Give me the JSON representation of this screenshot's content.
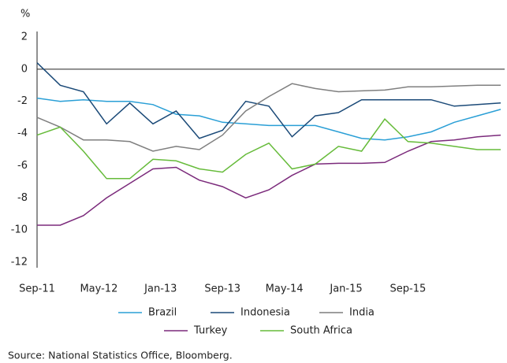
{
  "chart_data": {
    "type": "line",
    "y_unit": "%",
    "x": [
      "2011-09",
      "2011-12",
      "2012-03",
      "2012-06",
      "2012-09",
      "2012-12",
      "2013-03",
      "2013-06",
      "2013-09",
      "2013-12",
      "2014-03",
      "2014-06",
      "2014-09",
      "2014-12",
      "2015-03",
      "2015-06",
      "2015-09",
      "2015-12",
      "2016-03",
      "2016-06",
      "2016-09"
    ],
    "xticks": [
      {
        "value": "2011-09",
        "label": "Sep-11"
      },
      {
        "value": "2012-05",
        "label": "May-12"
      },
      {
        "value": "2013-01",
        "label": "Jan-13"
      },
      {
        "value": "2013-09",
        "label": "Sep-13"
      },
      {
        "value": "2014-05",
        "label": "May-14"
      },
      {
        "value": "2015-01",
        "label": "Jan-15"
      },
      {
        "value": "2015-09",
        "label": "Sep-15"
      }
    ],
    "ylim": [
      -12,
      2
    ],
    "yticks": [
      2,
      0,
      -2,
      -4,
      -6,
      -8,
      -10,
      -12
    ],
    "series": [
      {
        "name": "Brazil",
        "color": "#2a9fd6",
        "values": [
          -1.8,
          -2.0,
          -1.9,
          -2.0,
          -2.0,
          -2.2,
          -2.8,
          -2.9,
          -3.3,
          -3.4,
          -3.5,
          -3.5,
          -3.5,
          -3.9,
          -4.3,
          -4.4,
          -4.2,
          -3.9,
          -3.3,
          -2.9,
          -2.5
        ]
      },
      {
        "name": "Indonesia",
        "color": "#1b4a78",
        "values": [
          0.4,
          -1.0,
          -1.4,
          -3.4,
          -2.1,
          -3.4,
          -2.6,
          -4.3,
          -3.8,
          -2.0,
          -2.3,
          -4.2,
          -2.9,
          -2.7,
          -1.9,
          -1.9,
          -1.9,
          -1.9,
          -2.3,
          -2.2,
          -2.1
        ]
      },
      {
        "name": "India",
        "color": "#7f7f7f",
        "values": [
          -3.0,
          -3.6,
          -4.4,
          -4.4,
          -4.5,
          -5.1,
          -4.8,
          -5.0,
          -4.1,
          -2.6,
          -1.7,
          -0.9,
          -1.2,
          -1.4,
          -1.35,
          -1.3,
          -1.1,
          -1.1,
          -1.05,
          -1.0,
          -1.0
        ]
      },
      {
        "name": "Turkey",
        "color": "#7b2a7b",
        "values": [
          -9.7,
          -9.7,
          -9.1,
          -8.0,
          -7.1,
          -6.2,
          -6.1,
          -6.9,
          -7.3,
          -8.0,
          -7.5,
          -6.6,
          -5.9,
          -5.85,
          -5.85,
          -5.8,
          -5.1,
          -4.5,
          -4.4,
          -4.2,
          -4.1
        ]
      },
      {
        "name": "South Africa",
        "color": "#66bb3a",
        "values": [
          -4.1,
          -3.6,
          -5.1,
          -6.8,
          -6.8,
          -5.6,
          -5.7,
          -6.2,
          -6.4,
          -5.3,
          -4.6,
          -6.2,
          -5.9,
          -4.8,
          -5.1,
          -3.1,
          -4.5,
          -4.6,
          -4.8,
          -5.0,
          -5.0
        ]
      }
    ],
    "source": "Source: National Statistics Office, Bloomberg."
  }
}
